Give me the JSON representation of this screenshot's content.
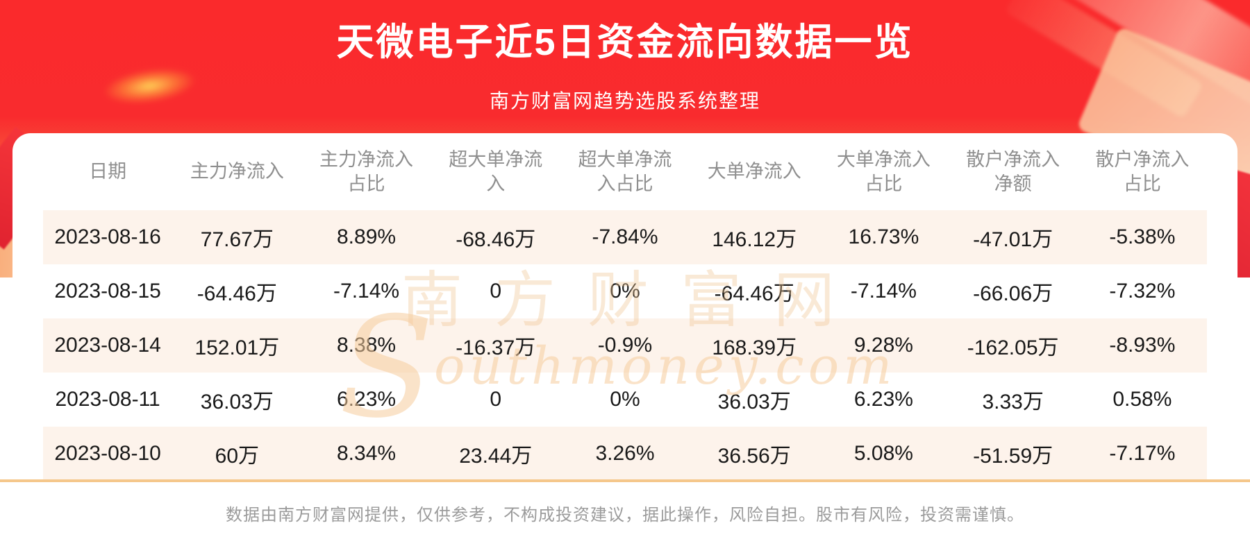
{
  "header": {
    "title": "天微电子近5日资金流向数据一览",
    "subtitle": "南方财富网趋势选股系统整理"
  },
  "table": {
    "columns": [
      "日期",
      "主力净流入",
      "主力净流入占比",
      "超大单净流入",
      "超大单净流入占比",
      "大单净流入",
      "大单净流入占比",
      "散户净流入净额",
      "散户净流入占比"
    ],
    "rows": [
      [
        "2023-08-16",
        "77.67万",
        "8.89%",
        "-68.46万",
        "-7.84%",
        "146.12万",
        "16.73%",
        "-47.01万",
        "-5.38%"
      ],
      [
        "2023-08-15",
        "-64.46万",
        "-7.14%",
        "0",
        "0%",
        "-64.46万",
        "-7.14%",
        "-66.06万",
        "-7.32%"
      ],
      [
        "2023-08-14",
        "152.01万",
        "8.38%",
        "-16.37万",
        "-0.9%",
        "168.39万",
        "9.28%",
        "-162.05万",
        "-8.93%"
      ],
      [
        "2023-08-11",
        "36.03万",
        "6.23%",
        "0",
        "0%",
        "36.03万",
        "6.23%",
        "3.33万",
        "0.58%"
      ],
      [
        "2023-08-10",
        "60万",
        "8.34%",
        "23.44万",
        "3.26%",
        "36.56万",
        "5.08%",
        "-51.59万",
        "-7.17%"
      ]
    ]
  },
  "chart_data": {
    "type": "table",
    "title": "天微电子近5日资金流向数据一览",
    "columns": [
      "日期",
      "主力净流入",
      "主力净流入占比",
      "超大单净流入",
      "超大单净流入占比",
      "大单净流入",
      "大单净流入占比",
      "散户净流入净额",
      "散户净流入占比"
    ],
    "rows": [
      [
        "2023-08-16",
        "77.67万",
        "8.89%",
        "-68.46万",
        "-7.84%",
        "146.12万",
        "16.73%",
        "-47.01万",
        "-5.38%"
      ],
      [
        "2023-08-15",
        "-64.46万",
        "-7.14%",
        "0",
        "0%",
        "-64.46万",
        "-7.14%",
        "-66.06万",
        "-7.32%"
      ],
      [
        "2023-08-14",
        "152.01万",
        "8.38%",
        "-16.37万",
        "-0.9%",
        "168.39万",
        "9.28%",
        "-162.05万",
        "-8.93%"
      ],
      [
        "2023-08-11",
        "36.03万",
        "6.23%",
        "0",
        "0%",
        "36.03万",
        "6.23%",
        "3.33万",
        "0.58%"
      ],
      [
        "2023-08-10",
        "60万",
        "8.34%",
        "23.44万",
        "3.26%",
        "36.56万",
        "5.08%",
        "-51.59万",
        "-7.17%"
      ]
    ]
  },
  "watermark": {
    "text_cn": "南方财富网",
    "initial": "S",
    "text_en": "outhmoney.com"
  },
  "footer": {
    "disclaimer": "数据由南方财富网提供，仅供参考，不构成投资建议，据此操作，风险自担。股市有风险，投资需谨慎。"
  },
  "colors": {
    "banner_red": "#fa2a2e",
    "banner_orange": "#f88b55",
    "row_alt": "#fdf3eb",
    "divider_orange": "#f5c78b",
    "header_text": "#8f8f8f",
    "body_text": "#191919",
    "footer_text": "#9b9b9b",
    "title_text": "#ffffff"
  }
}
